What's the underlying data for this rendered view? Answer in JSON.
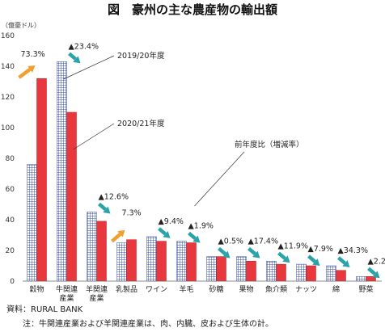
{
  "chart_data": {
    "type": "bar",
    "title": "図　豪州の主な農産物の輸出額",
    "unit_label": "（億豪ドル）",
    "ylim": [
      0,
      160
    ],
    "yticks": [
      0,
      20,
      40,
      60,
      80,
      100,
      120,
      140,
      160
    ],
    "categories": [
      [
        "穀物"
      ],
      [
        "牛関連",
        "産業"
      ],
      [
        "羊関連",
        "産業"
      ],
      [
        "乳製品"
      ],
      [
        "ワイン"
      ],
      [
        "羊毛"
      ],
      [
        "砂糖"
      ],
      [
        "果物"
      ],
      [
        "魚介類"
      ],
      [
        "ナッツ"
      ],
      [
        "綿"
      ],
      [
        "野菜"
      ]
    ],
    "series": [
      {
        "name": "2019/20年度",
        "values": [
          76,
          143,
          45,
          25,
          29,
          26,
          16,
          16,
          13,
          11,
          10,
          3
        ]
      },
      {
        "name": "2020/21年度",
        "values": [
          132,
          110,
          39,
          27,
          26,
          25,
          16,
          13,
          11,
          10,
          7,
          3
        ]
      }
    ],
    "changes": [
      {
        "label": "73.3%",
        "direction": "up"
      },
      {
        "label": "▲23.4%",
        "direction": "down"
      },
      {
        "label": "▲12.6%",
        "direction": "down"
      },
      {
        "label": "7.3%",
        "direction": "up"
      },
      {
        "label": "▲9.4%",
        "direction": "down"
      },
      {
        "label": "▲1.9%",
        "direction": "down"
      },
      {
        "label": "▲0.5%",
        "direction": "down"
      },
      {
        "label": "▲17.4%",
        "direction": "down"
      },
      {
        "label": "▲11.9%",
        "direction": "down"
      },
      {
        "label": "▲7.9%",
        "direction": "down"
      },
      {
        "label": "▲34.3%",
        "direction": "down"
      },
      {
        "label": "▲2.2%",
        "direction": "down"
      }
    ],
    "change_legend": "前年度比（増減率）",
    "colors": {
      "series1": "#3a4fa8",
      "series2": "#e8383d",
      "up": "#f0a030",
      "down": "#2aa3a8"
    },
    "source": "資料：RURAL BANK",
    "note": "注：牛関連産業および羊関連産業は、肉、内臓、皮および生体の計。"
  }
}
